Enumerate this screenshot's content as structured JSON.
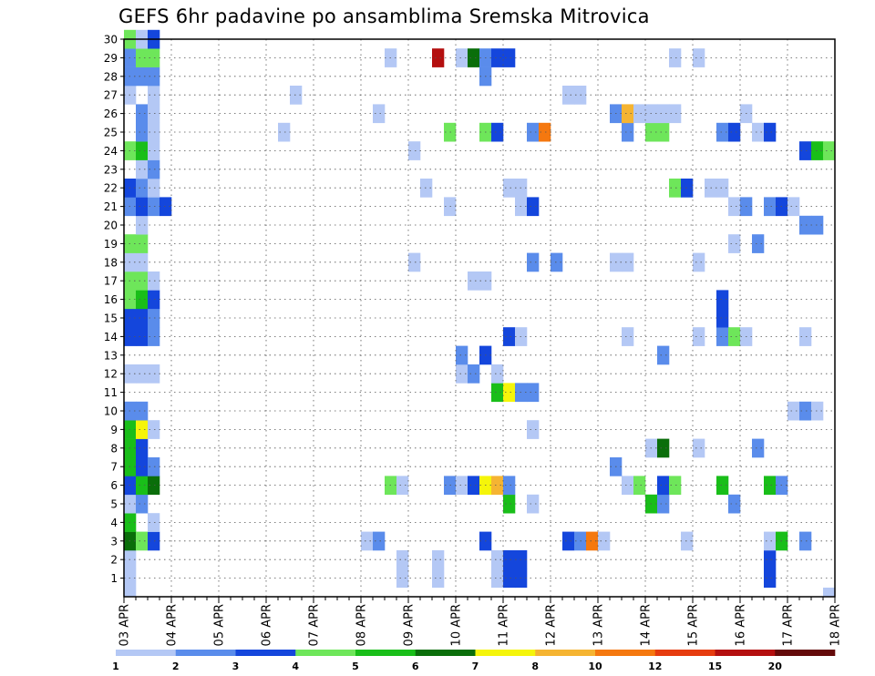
{
  "chart_data": {
    "type": "heatmap",
    "title": "GEFS 6hr padavine po ansamblima Sremska Mitrovica",
    "xlabel": "",
    "ylabel": "",
    "x_unit": "6-hour step from 03 APR 00z",
    "x_range": [
      0,
      60
    ],
    "y_range": [
      0,
      30
    ],
    "y_ticks": [
      1,
      2,
      3,
      4,
      5,
      6,
      7,
      8,
      9,
      10,
      11,
      12,
      13,
      14,
      15,
      16,
      17,
      18,
      19,
      20,
      21,
      22,
      23,
      24,
      25,
      26,
      27,
      28,
      29,
      30
    ],
    "x_tick_labels": [
      "03 APR",
      "04 APR",
      "05 APR",
      "06 APR",
      "07 APR",
      "08 APR",
      "09 APR",
      "10 APR",
      "11 APR",
      "12 APR",
      "13 APR",
      "14 APR",
      "15 APR",
      "16 APR",
      "17 APR",
      "18 APR"
    ],
    "legend": {
      "labels": [
        "1",
        "2",
        "3",
        "4",
        "5",
        "6",
        "7",
        "8",
        "10",
        "12",
        "15",
        "20"
      ],
      "colors": [
        "#b4c8f5",
        "#5a8ceb",
        "#1446dc",
        "#6ee65a",
        "#19be19",
        "#0a6e0a",
        "#f5f50a",
        "#f5b432",
        "#f5780f",
        "#e63c0f",
        "#b40f0f",
        "#640a0a"
      ]
    },
    "series": [
      {
        "member": 0,
        "cells": [
          {
            "t": 0,
            "class": 1
          },
          {
            "t": 59,
            "class": 1
          }
        ]
      },
      {
        "member": 1,
        "cells": [
          {
            "t": 0,
            "class": 1
          },
          {
            "t": 23,
            "class": 1
          },
          {
            "t": 26,
            "class": 1
          },
          {
            "t": 31,
            "class": 1
          },
          {
            "t": 32,
            "class": 3
          },
          {
            "t": 33,
            "class": 3
          },
          {
            "t": 54,
            "class": 3
          }
        ]
      },
      {
        "member": 2,
        "cells": [
          {
            "t": 0,
            "class": 1
          },
          {
            "t": 23,
            "class": 1
          },
          {
            "t": 26,
            "class": 1
          },
          {
            "t": 31,
            "class": 1
          },
          {
            "t": 32,
            "class": 3
          },
          {
            "t": 33,
            "class": 3
          },
          {
            "t": 54,
            "class": 3
          }
        ]
      },
      {
        "member": 3,
        "cells": [
          {
            "t": 0,
            "class": 6
          },
          {
            "t": 1,
            "class": 4
          },
          {
            "t": 2,
            "class": 3
          },
          {
            "t": 20,
            "class": 1
          },
          {
            "t": 21,
            "class": 2
          },
          {
            "t": 30,
            "class": 3
          },
          {
            "t": 37,
            "class": 3
          },
          {
            "t": 38,
            "class": 2
          },
          {
            "t": 39,
            "class": 9
          },
          {
            "t": 40,
            "class": 1
          },
          {
            "t": 47,
            "class": 1
          },
          {
            "t": 54,
            "class": 1
          },
          {
            "t": 55,
            "class": 5
          },
          {
            "t": 57,
            "class": 2
          }
        ]
      },
      {
        "member": 4,
        "cells": [
          {
            "t": 0,
            "class": 5
          },
          {
            "t": 2,
            "class": 1
          }
        ]
      },
      {
        "member": 5,
        "cells": [
          {
            "t": 0,
            "class": 1
          },
          {
            "t": 1,
            "class": 2
          },
          {
            "t": 32,
            "class": 5
          },
          {
            "t": 34,
            "class": 1
          },
          {
            "t": 44,
            "class": 5
          },
          {
            "t": 45,
            "class": 2
          },
          {
            "t": 51,
            "class": 2
          }
        ]
      },
      {
        "member": 6,
        "cells": [
          {
            "t": 0,
            "class": 3
          },
          {
            "t": 1,
            "class": 5
          },
          {
            "t": 2,
            "class": 6
          },
          {
            "t": 22,
            "class": 4
          },
          {
            "t": 23,
            "class": 1
          },
          {
            "t": 27,
            "class": 2
          },
          {
            "t": 28,
            "class": 1
          },
          {
            "t": 29,
            "class": 3
          },
          {
            "t": 30,
            "class": 7
          },
          {
            "t": 31,
            "class": 8
          },
          {
            "t": 32,
            "class": 2
          },
          {
            "t": 42,
            "class": 1
          },
          {
            "t": 43,
            "class": 4
          },
          {
            "t": 45,
            "class": 3
          },
          {
            "t": 46,
            "class": 4
          },
          {
            "t": 50,
            "class": 5
          },
          {
            "t": 54,
            "class": 5
          },
          {
            "t": 55,
            "class": 2
          }
        ]
      },
      {
        "member": 7,
        "cells": [
          {
            "t": 0,
            "class": 5
          },
          {
            "t": 1,
            "class": 3
          },
          {
            "t": 2,
            "class": 2
          },
          {
            "t": 41,
            "class": 2
          }
        ]
      },
      {
        "member": 8,
        "cells": [
          {
            "t": 0,
            "class": 5
          },
          {
            "t": 1,
            "class": 3
          },
          {
            "t": 44,
            "class": 1
          },
          {
            "t": 45,
            "class": 6
          },
          {
            "t": 48,
            "class": 1
          },
          {
            "t": 53,
            "class": 2
          }
        ]
      },
      {
        "member": 9,
        "cells": [
          {
            "t": 0,
            "class": 5
          },
          {
            "t": 1,
            "class": 7
          },
          {
            "t": 2,
            "class": 1
          },
          {
            "t": 34,
            "class": 1
          }
        ]
      },
      {
        "member": 10,
        "cells": [
          {
            "t": 0,
            "class": 2
          },
          {
            "t": 1,
            "class": 2
          },
          {
            "t": 56,
            "class": 1
          },
          {
            "t": 57,
            "class": 2
          },
          {
            "t": 58,
            "class": 1
          }
        ]
      },
      {
        "member": 11,
        "cells": [
          {
            "t": 31,
            "class": 5
          },
          {
            "t": 32,
            "class": 7
          },
          {
            "t": 33,
            "class": 2
          },
          {
            "t": 34,
            "class": 2
          }
        ]
      },
      {
        "member": 12,
        "cells": [
          {
            "t": 0,
            "class": 1
          },
          {
            "t": 1,
            "class": 1
          },
          {
            "t": 2,
            "class": 1
          },
          {
            "t": 28,
            "class": 1
          },
          {
            "t": 29,
            "class": 2
          },
          {
            "t": 31,
            "class": 1
          }
        ]
      },
      {
        "member": 13,
        "cells": [
          {
            "t": 28,
            "class": 2
          },
          {
            "t": 30,
            "class": 3
          },
          {
            "t": 45,
            "class": 2
          }
        ]
      },
      {
        "member": 14,
        "cells": [
          {
            "t": 0,
            "class": 3
          },
          {
            "t": 1,
            "class": 3
          },
          {
            "t": 2,
            "class": 2
          },
          {
            "t": 32,
            "class": 3
          },
          {
            "t": 33,
            "class": 1
          },
          {
            "t": 42,
            "class": 1
          },
          {
            "t": 48,
            "class": 1
          },
          {
            "t": 50,
            "class": 2
          },
          {
            "t": 51,
            "class": 4
          },
          {
            "t": 52,
            "class": 1
          },
          {
            "t": 57,
            "class": 1
          }
        ]
      },
      {
        "member": 15,
        "cells": [
          {
            "t": 0,
            "class": 3
          },
          {
            "t": 1,
            "class": 3
          },
          {
            "t": 2,
            "class": 2
          },
          {
            "t": 50,
            "class": 3
          }
        ]
      },
      {
        "member": 16,
        "cells": [
          {
            "t": 0,
            "class": 4
          },
          {
            "t": 1,
            "class": 5
          },
          {
            "t": 2,
            "class": 3
          },
          {
            "t": 50,
            "class": 3
          }
        ]
      },
      {
        "member": 17,
        "cells": [
          {
            "t": 0,
            "class": 4
          },
          {
            "t": 1,
            "class": 4
          },
          {
            "t": 2,
            "class": 1
          },
          {
            "t": 29,
            "class": 1
          },
          {
            "t": 30,
            "class": 1
          }
        ]
      },
      {
        "member": 18,
        "cells": [
          {
            "t": 0,
            "class": 1
          },
          {
            "t": 1,
            "class": 1
          },
          {
            "t": 24,
            "class": 1
          },
          {
            "t": 34,
            "class": 2
          },
          {
            "t": 36,
            "class": 2
          },
          {
            "t": 41,
            "class": 1
          },
          {
            "t": 42,
            "class": 1
          },
          {
            "t": 48,
            "class": 1
          }
        ]
      },
      {
        "member": 19,
        "cells": [
          {
            "t": 0,
            "class": 4
          },
          {
            "t": 1,
            "class": 4
          },
          {
            "t": 51,
            "class": 1
          },
          {
            "t": 53,
            "class": 2
          }
        ]
      },
      {
        "member": 20,
        "cells": [
          {
            "t": 1,
            "class": 1
          },
          {
            "t": 57,
            "class": 2
          },
          {
            "t": 58,
            "class": 2
          }
        ]
      },
      {
        "member": 21,
        "cells": [
          {
            "t": 0,
            "class": 2
          },
          {
            "t": 1,
            "class": 3
          },
          {
            "t": 2,
            "class": 2
          },
          {
            "t": 3,
            "class": 3
          },
          {
            "t": 27,
            "class": 1
          },
          {
            "t": 33,
            "class": 1
          },
          {
            "t": 34,
            "class": 3
          },
          {
            "t": 51,
            "class": 1
          },
          {
            "t": 52,
            "class": 2
          },
          {
            "t": 54,
            "class": 2
          },
          {
            "t": 55,
            "class": 3
          },
          {
            "t": 56,
            "class": 1
          }
        ]
      },
      {
        "member": 22,
        "cells": [
          {
            "t": 0,
            "class": 3
          },
          {
            "t": 1,
            "class": 2
          },
          {
            "t": 2,
            "class": 1
          },
          {
            "t": 25,
            "class": 1
          },
          {
            "t": 32,
            "class": 1
          },
          {
            "t": 33,
            "class": 1
          },
          {
            "t": 46,
            "class": 4
          },
          {
            "t": 47,
            "class": 3
          },
          {
            "t": 49,
            "class": 1
          },
          {
            "t": 50,
            "class": 1
          }
        ]
      },
      {
        "member": 23,
        "cells": [
          {
            "t": 1,
            "class": 1
          },
          {
            "t": 2,
            "class": 2
          }
        ]
      },
      {
        "member": 24,
        "cells": [
          {
            "t": 0,
            "class": 4
          },
          {
            "t": 1,
            "class": 5
          },
          {
            "t": 2,
            "class": 1
          },
          {
            "t": 24,
            "class": 1
          },
          {
            "t": 57,
            "class": 3
          },
          {
            "t": 58,
            "class": 5
          },
          {
            "t": 59,
            "class": 4
          }
        ]
      },
      {
        "member": 25,
        "cells": [
          {
            "t": 1,
            "class": 2
          },
          {
            "t": 2,
            "class": 1
          },
          {
            "t": 13,
            "class": 1
          },
          {
            "t": 27,
            "class": 4
          },
          {
            "t": 30,
            "class": 4
          },
          {
            "t": 31,
            "class": 3
          },
          {
            "t": 34,
            "class": 2
          },
          {
            "t": 35,
            "class": 9
          },
          {
            "t": 42,
            "class": 2
          },
          {
            "t": 44,
            "class": 4
          },
          {
            "t": 45,
            "class": 4
          },
          {
            "t": 50,
            "class": 2
          },
          {
            "t": 51,
            "class": 3
          },
          {
            "t": 53,
            "class": 1
          },
          {
            "t": 54,
            "class": 3
          }
        ]
      },
      {
        "member": 26,
        "cells": [
          {
            "t": 1,
            "class": 2
          },
          {
            "t": 2,
            "class": 1
          },
          {
            "t": 21,
            "class": 1
          },
          {
            "t": 41,
            "class": 2
          },
          {
            "t": 42,
            "class": 8
          },
          {
            "t": 43,
            "class": 1
          },
          {
            "t": 44,
            "class": 1
          },
          {
            "t": 45,
            "class": 1
          },
          {
            "t": 46,
            "class": 1
          },
          {
            "t": 52,
            "class": 1
          }
        ]
      },
      {
        "member": 27,
        "cells": [
          {
            "t": 0,
            "class": 1
          },
          {
            "t": 2,
            "class": 1
          },
          {
            "t": 14,
            "class": 1
          },
          {
            "t": 37,
            "class": 1
          },
          {
            "t": 38,
            "class": 1
          }
        ]
      },
      {
        "member": 28,
        "cells": [
          {
            "t": 0,
            "class": 2
          },
          {
            "t": 1,
            "class": 2
          },
          {
            "t": 2,
            "class": 2
          },
          {
            "t": 30,
            "class": 2
          }
        ]
      },
      {
        "member": 29,
        "cells": [
          {
            "t": 0,
            "class": 2
          },
          {
            "t": 1,
            "class": 4
          },
          {
            "t": 2,
            "class": 4
          },
          {
            "t": 22,
            "class": 1
          },
          {
            "t": 26,
            "class": 11
          },
          {
            "t": 28,
            "class": 1
          },
          {
            "t": 29,
            "class": 6
          },
          {
            "t": 30,
            "class": 2
          },
          {
            "t": 31,
            "class": 3
          },
          {
            "t": 32,
            "class": 3
          },
          {
            "t": 46,
            "class": 1
          },
          {
            "t": 48,
            "class": 1
          }
        ]
      },
      {
        "member": 30,
        "cells": [
          {
            "t": 0,
            "class": 4
          },
          {
            "t": 1,
            "class": 1
          },
          {
            "t": 2,
            "class": 3
          }
        ]
      }
    ]
  }
}
